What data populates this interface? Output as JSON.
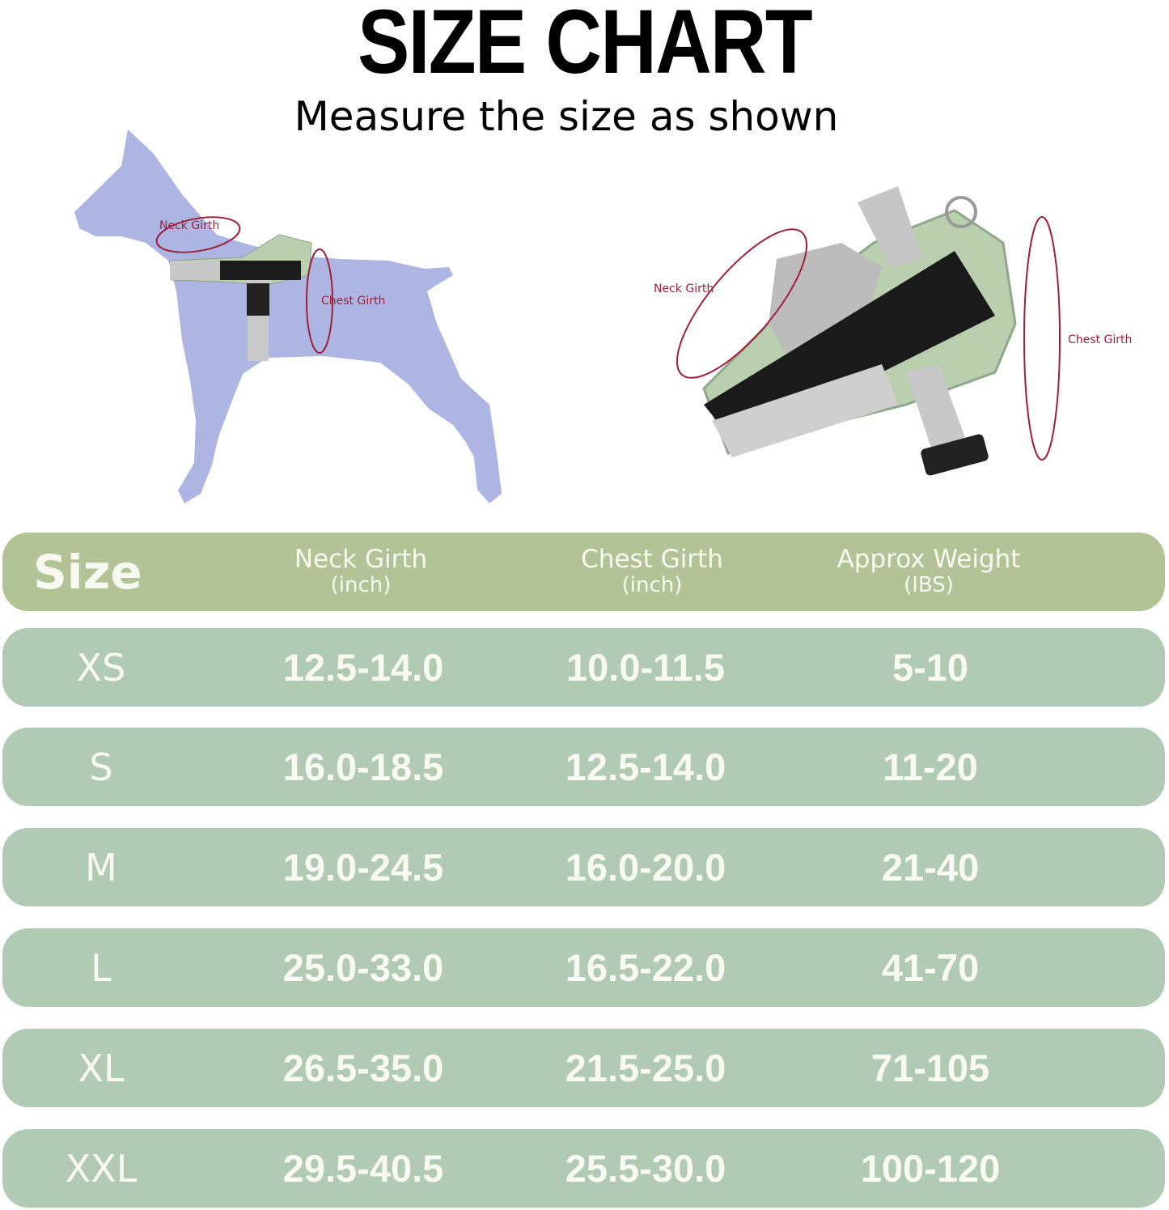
{
  "title": "SIZE CHART",
  "subtitle": "Measure the size as shown",
  "diagram_labels": {
    "dog_neck": "Neck Girth",
    "dog_chest": "Chest Girth",
    "harness_neck": "Neck Girth",
    "harness_chest": "Chest Girth"
  },
  "colors": {
    "header_bg": "#b2c396",
    "row_bg": "#b0cab3",
    "text": "#f8f9f1",
    "dog": "#adb6e2",
    "measure_line": "#a0203a"
  },
  "table": {
    "headers": [
      {
        "label": "Size",
        "unit": ""
      },
      {
        "label": "Neck Girth",
        "unit": "(inch)"
      },
      {
        "label": "Chest Girth",
        "unit": "(inch)"
      },
      {
        "label": "Approx Weight",
        "unit": "(IBS)"
      }
    ],
    "rows": [
      {
        "size": "XS",
        "neck": "12.5-14.0",
        "chest": "10.0-11.5",
        "weight": "5-10"
      },
      {
        "size": "S",
        "neck": "16.0-18.5",
        "chest": "12.5-14.0",
        "weight": "11-20"
      },
      {
        "size": "M",
        "neck": "19.0-24.5",
        "chest": "16.0-20.0",
        "weight": "21-40"
      },
      {
        "size": "L",
        "neck": "25.0-33.0",
        "chest": "16.5-22.0",
        "weight": "41-70"
      },
      {
        "size": "XL",
        "neck": "26.5-35.0",
        "chest": "21.5-25.0",
        "weight": "71-105"
      },
      {
        "size": "XXL",
        "neck": "29.5-40.5",
        "chest": "25.5-30.0",
        "weight": "100-120"
      }
    ]
  }
}
